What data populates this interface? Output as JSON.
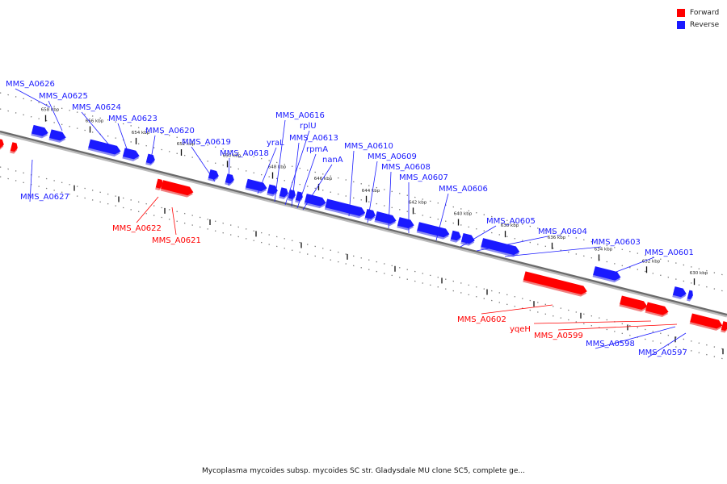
{
  "legend": {
    "forward": {
      "label": "Forward",
      "color": "#ff0000"
    },
    "reverse": {
      "label": "Reverse",
      "color": "#1a1aff"
    }
  },
  "caption": "Mycoplasma mycoides subsp. mycoides SC str. Gladysdale MU clone SC5, complete ge...",
  "ticks": [
    "658 kbp",
    "656 kbp",
    "654 kbp",
    "652 kbp",
    "650 kbp",
    "648 kbp",
    "646 kbp",
    "644 kbp",
    "642 kbp",
    "640 kbp",
    "638 kbp",
    "636 kbp",
    "634 kbp",
    "632 kbp",
    "630 kbp"
  ],
  "reverse_labels": [
    "MMS_A0626",
    "MMS_A0625",
    "MMS_A0624",
    "MMS_A0623",
    "MMS_A0620",
    "MMS_A0619",
    "MMS_A0618",
    "MMS_A0627",
    "yraL",
    "MMS_A0616",
    "rplU",
    "MMS_A0613",
    "rpmA",
    "nanA",
    "MMS_A0610",
    "MMS_A0609",
    "MMS_A0608",
    "MMS_A0607",
    "MMS_A0606",
    "MMS_A0605",
    "MMS_A0604",
    "MMS_A0603",
    "MMS_A0601",
    "MMS_A0598",
    "MMS_A0597"
  ],
  "forward_labels": [
    "MMS_A0622",
    "MMS_A0621",
    "MMS_A0602",
    "yqeH",
    "MMS_A0599"
  ]
}
